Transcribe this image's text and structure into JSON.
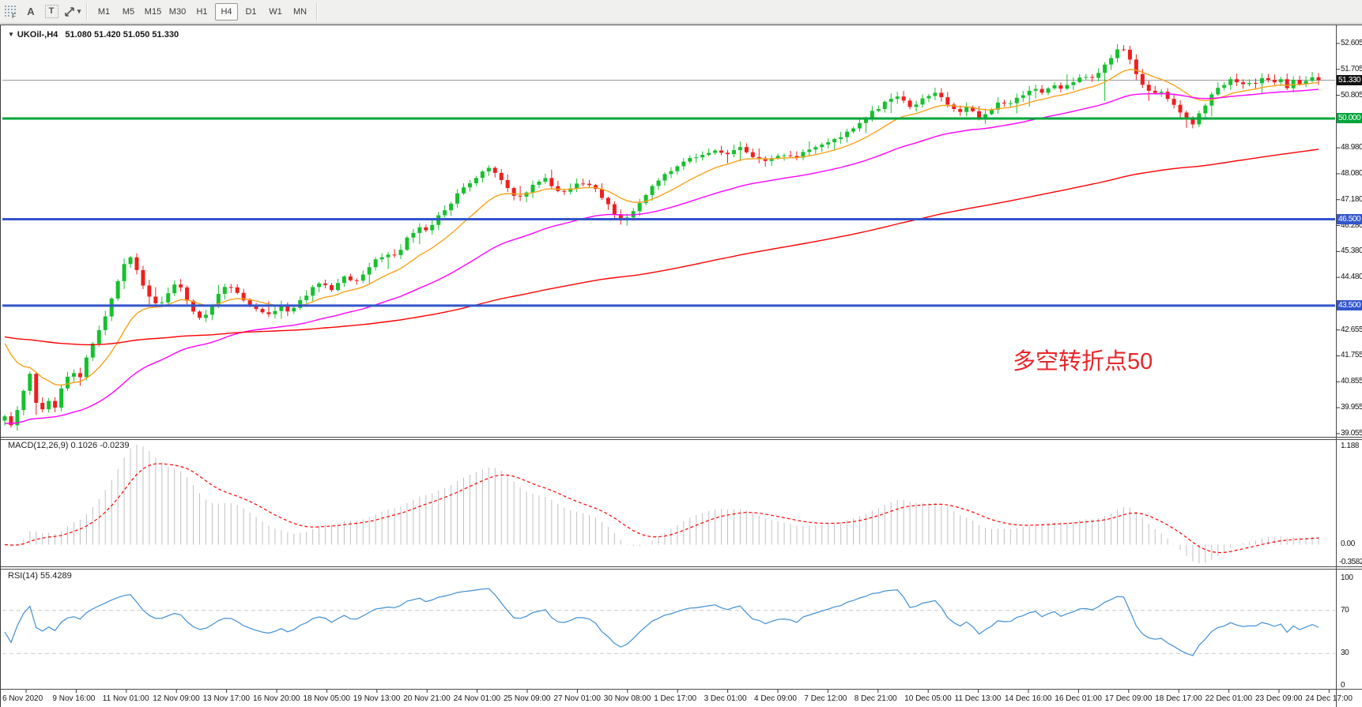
{
  "toolbar": {
    "icons": {
      "font_tool": "A",
      "text_tool": "T",
      "grid_tag": "F"
    },
    "timeframes": [
      "M1",
      "M5",
      "M15",
      "M30",
      "H1",
      "H4",
      "D1",
      "W1",
      "MN"
    ],
    "active_timeframe": "H4"
  },
  "header": {
    "symbol": "UKOil-,H4",
    "ohlc": "51.080 51.420 51.050 51.330"
  },
  "annotation": {
    "text": "多空转折点50",
    "color": "#e8252a"
  },
  "macd": {
    "label": "MACD(12,26,9) 0.1026 -0.0239",
    "fast": 12,
    "slow": 26,
    "signal": 9,
    "axis_labels": [
      "1.188",
      "0.00",
      "-0.3582"
    ]
  },
  "rsi": {
    "label": "RSI(14) 55.4289",
    "period": 14,
    "axis_labels": [
      "100",
      "70",
      "30",
      "0"
    ],
    "levels": [
      70,
      30
    ]
  },
  "colors": {
    "up_candle": "#17c02e",
    "down_candle": "#ee1f1f",
    "ma_fast": "#f9a11b",
    "ma_medium": "#ff00ff",
    "ma_slow": "#ff0000",
    "macd_histogram": "#c0c0c0",
    "macd_signal": "#ff0000",
    "rsi_line": "#3f8fd6",
    "level_dashed": "#c9c9c9",
    "hline_green": "#00a43b",
    "hline_blue": "#3356cb",
    "price_line_gray": "#9a9a9a",
    "badge_black": "#111111"
  },
  "main_axis_labels": [
    "52.605",
    "51.705",
    "50.805",
    "48.980",
    "48.080",
    "47.180",
    "46.280",
    "45.380",
    "44.480",
    "42.655",
    "41.755",
    "40.855",
    "39.955",
    "39.055"
  ],
  "price_badges": [
    {
      "value": "51.330",
      "price": 51.33,
      "color": "#111111",
      "name": "current-price-badge"
    },
    {
      "value": "50.000",
      "price": 50.0,
      "color": "#00a43b",
      "name": "hline-50-badge"
    },
    {
      "value": "46.500",
      "price": 46.5,
      "color": "#3356cb",
      "name": "hline-46-badge"
    },
    {
      "value": "43.500",
      "price": 43.5,
      "color": "#3356cb",
      "name": "hline-43-badge"
    }
  ],
  "time_labels": [
    "6 Nov 2020",
    "9 Nov 16:00",
    "11 Nov 01:00",
    "12 Nov 09:00",
    "13 Nov 17:00",
    "16 Nov 20:00",
    "18 Nov 05:00",
    "19 Nov 13:00",
    "20 Nov 21:00",
    "24 Nov 01:00",
    "25 Nov 09:00",
    "27 Nov 01:00",
    "30 Nov 08:00",
    "1 Dec 17:00",
    "3 Dec 01:00",
    "4 Dec 09:00",
    "7 Dec 12:00",
    "8 Dec 21:00",
    "10 Dec 05:00",
    "11 Dec 13:00",
    "14 Dec 16:00",
    "16 Dec 01:00",
    "17 Dec 09:00",
    "18 Dec 17:00",
    "22 Dec 01:00",
    "23 Dec 09:00",
    "24 Dec 17:00"
  ],
  "chart_data": {
    "type": "candlestick",
    "symbol": "UKOil",
    "timeframe": "H4",
    "title": "UKOil-,H4",
    "ohlc_display": {
      "open": 51.08,
      "high": 51.42,
      "low": 51.05,
      "close": 51.33
    },
    "ylim": [
      38.97,
      53.18
    ],
    "y_ticks": [
      52.605,
      51.705,
      50.805,
      48.98,
      48.08,
      47.18,
      46.28,
      45.38,
      44.48,
      42.655,
      41.755,
      40.855,
      39.955,
      39.055
    ],
    "bars": 210,
    "price_anchors": [
      [
        0.0,
        39.6
      ],
      [
        0.005,
        39.3
      ],
      [
        0.01,
        39.9
      ],
      [
        0.015,
        40.6
      ],
      [
        0.02,
        41.2
      ],
      [
        0.026,
        39.55
      ],
      [
        0.032,
        40.3
      ],
      [
        0.038,
        39.95
      ],
      [
        0.044,
        40.7
      ],
      [
        0.05,
        41.2
      ],
      [
        0.057,
        41.0
      ],
      [
        0.064,
        41.9
      ],
      [
        0.071,
        42.6
      ],
      [
        0.078,
        43.3
      ],
      [
        0.085,
        44.2
      ],
      [
        0.091,
        45.0
      ],
      [
        0.096,
        45.25
      ],
      [
        0.103,
        44.4
      ],
      [
        0.11,
        43.8
      ],
      [
        0.117,
        43.4
      ],
      [
        0.124,
        43.9
      ],
      [
        0.131,
        44.4
      ],
      [
        0.138,
        43.7
      ],
      [
        0.145,
        43.2
      ],
      [
        0.15,
        43.1
      ],
      [
        0.155,
        43.3
      ],
      [
        0.163,
        43.9
      ],
      [
        0.17,
        44.3
      ],
      [
        0.178,
        43.9
      ],
      [
        0.186,
        43.5
      ],
      [
        0.194,
        43.25
      ],
      [
        0.202,
        43.2
      ],
      [
        0.21,
        43.45
      ],
      [
        0.218,
        43.3
      ],
      [
        0.226,
        43.7
      ],
      [
        0.234,
        44.1
      ],
      [
        0.242,
        44.3
      ],
      [
        0.25,
        44.05
      ],
      [
        0.258,
        44.5
      ],
      [
        0.266,
        44.25
      ],
      [
        0.274,
        44.7
      ],
      [
        0.282,
        45.1
      ],
      [
        0.29,
        45.3
      ],
      [
        0.298,
        45.2
      ],
      [
        0.306,
        45.8
      ],
      [
        0.314,
        46.2
      ],
      [
        0.322,
        46.1
      ],
      [
        0.33,
        46.6
      ],
      [
        0.338,
        46.95
      ],
      [
        0.346,
        47.45
      ],
      [
        0.354,
        47.7
      ],
      [
        0.362,
        48.1
      ],
      [
        0.37,
        48.3
      ],
      [
        0.378,
        47.8
      ],
      [
        0.386,
        47.4
      ],
      [
        0.394,
        47.2
      ],
      [
        0.402,
        47.7
      ],
      [
        0.41,
        47.95
      ],
      [
        0.418,
        47.6
      ],
      [
        0.426,
        47.4
      ],
      [
        0.434,
        47.75
      ],
      [
        0.442,
        47.8
      ],
      [
        0.45,
        47.5
      ],
      [
        0.458,
        47.05
      ],
      [
        0.466,
        46.6
      ],
      [
        0.47,
        46.45
      ],
      [
        0.48,
        46.9
      ],
      [
        0.49,
        47.5
      ],
      [
        0.5,
        47.95
      ],
      [
        0.51,
        48.25
      ],
      [
        0.52,
        48.55
      ],
      [
        0.53,
        48.75
      ],
      [
        0.54,
        48.9
      ],
      [
        0.55,
        48.7
      ],
      [
        0.56,
        49.0
      ],
      [
        0.57,
        48.7
      ],
      [
        0.58,
        48.45
      ],
      [
        0.59,
        48.8
      ],
      [
        0.6,
        48.6
      ],
      [
        0.61,
        48.9
      ],
      [
        0.62,
        49.05
      ],
      [
        0.63,
        49.2
      ],
      [
        0.64,
        49.45
      ],
      [
        0.65,
        49.8
      ],
      [
        0.66,
        50.2
      ],
      [
        0.67,
        50.55
      ],
      [
        0.68,
        50.75
      ],
      [
        0.69,
        50.4
      ],
      [
        0.7,
        50.75
      ],
      [
        0.71,
        50.9
      ],
      [
        0.718,
        50.45
      ],
      [
        0.726,
        50.2
      ],
      [
        0.734,
        50.5
      ],
      [
        0.742,
        49.95
      ],
      [
        0.75,
        50.3
      ],
      [
        0.758,
        50.6
      ],
      [
        0.766,
        50.5
      ],
      [
        0.774,
        50.8
      ],
      [
        0.782,
        51.0
      ],
      [
        0.79,
        50.9
      ],
      [
        0.798,
        51.15
      ],
      [
        0.806,
        51.05
      ],
      [
        0.814,
        51.3
      ],
      [
        0.82,
        51.5
      ],
      [
        0.826,
        51.3
      ],
      [
        0.832,
        51.6
      ],
      [
        0.838,
        51.9
      ],
      [
        0.844,
        52.25
      ],
      [
        0.85,
        52.5
      ],
      [
        0.856,
        52.05
      ],
      [
        0.862,
        51.4
      ],
      [
        0.868,
        51.0
      ],
      [
        0.874,
        50.8
      ],
      [
        0.88,
        51.0
      ],
      [
        0.886,
        50.65
      ],
      [
        0.892,
        50.3
      ],
      [
        0.898,
        50.0
      ],
      [
        0.904,
        49.8
      ],
      [
        0.91,
        50.2
      ],
      [
        0.916,
        50.6
      ],
      [
        0.922,
        51.0
      ],
      [
        0.928,
        51.2
      ],
      [
        0.934,
        51.4
      ],
      [
        0.94,
        51.1
      ],
      [
        0.946,
        51.3
      ],
      [
        0.952,
        51.2
      ],
      [
        0.958,
        51.45
      ],
      [
        0.964,
        51.2
      ],
      [
        0.97,
        51.4
      ],
      [
        0.976,
        51.1
      ],
      [
        0.982,
        51.35
      ],
      [
        0.988,
        51.15
      ],
      [
        0.994,
        51.42
      ],
      [
        1.0,
        51.33
      ]
    ],
    "horizontal_lines": [
      {
        "price": 51.33,
        "color": "#9a9a9a",
        "width": 1,
        "name": "current-price-line"
      },
      {
        "price": 50.0,
        "color": "#00a43b",
        "width": 3,
        "name": "support-line-50"
      },
      {
        "price": 46.5,
        "color": "#3356cb",
        "width": 3,
        "name": "support-line-46-5"
      },
      {
        "price": 43.5,
        "color": "#3356cb",
        "width": 3,
        "name": "support-line-43-5"
      }
    ],
    "moving_averages": [
      {
        "name": "fast",
        "color": "#f9a11b",
        "alpha": 0.14,
        "seed": 42.6
      },
      {
        "name": "medium",
        "color": "#ff00ff",
        "alpha": 0.045,
        "seed": 39.4
      },
      {
        "name": "slow",
        "color": "#ff0000",
        "alpha": 0.012,
        "seed": 42.45
      }
    ],
    "indicators": {
      "macd": {
        "params": [
          12,
          26,
          9
        ],
        "current_macd": 0.1026,
        "current_signal": -0.0239,
        "scale_max": 1.188,
        "scale_min": -0.3582
      },
      "rsi": {
        "period": 14,
        "current": 55.4289,
        "levels": [
          70,
          30
        ],
        "scale": [
          0,
          100
        ]
      }
    },
    "legend_position": "none",
    "grid": "off"
  }
}
